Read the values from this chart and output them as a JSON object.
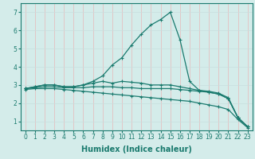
{
  "xlabel": "Humidex (Indice chaleur)",
  "bg_color": "#d4ecea",
  "line_color": "#1a7a6e",
  "grid_color_h": "#c8dede",
  "grid_color_v": "#e8b8b8",
  "xlim": [
    -0.5,
    23.5
  ],
  "ylim": [
    0.5,
    7.5
  ],
  "xticks": [
    0,
    1,
    2,
    3,
    4,
    5,
    6,
    7,
    8,
    9,
    10,
    11,
    12,
    13,
    14,
    15,
    16,
    17,
    18,
    19,
    20,
    21,
    22,
    23
  ],
  "yticks": [
    1,
    2,
    3,
    4,
    5,
    6,
    7
  ],
  "lines": [
    {
      "x": [
        0,
        1,
        2,
        3,
        4,
        5,
        6,
        7,
        8,
        9,
        10,
        11,
        12,
        13,
        14,
        15,
        16,
        17,
        18,
        19,
        20,
        21,
        22,
        23
      ],
      "y": [
        2.8,
        2.9,
        3.0,
        3.0,
        2.9,
        2.9,
        3.0,
        3.2,
        3.5,
        4.1,
        4.5,
        5.2,
        5.8,
        6.3,
        6.6,
        7.0,
        5.5,
        3.2,
        2.7,
        2.65,
        2.55,
        2.3,
        1.2,
        0.7
      ]
    },
    {
      "x": [
        0,
        1,
        2,
        3,
        4,
        5,
        6,
        7,
        8,
        9,
        10,
        11,
        12,
        13,
        14,
        15,
        16,
        17,
        18,
        19,
        20,
        21,
        22,
        23
      ],
      "y": [
        2.8,
        2.9,
        3.0,
        3.0,
        2.9,
        2.9,
        3.0,
        3.1,
        3.2,
        3.1,
        3.2,
        3.15,
        3.1,
        3.0,
        3.0,
        3.0,
        2.9,
        2.8,
        2.7,
        2.6,
        2.5,
        2.25,
        1.2,
        0.7
      ]
    },
    {
      "x": [
        0,
        1,
        2,
        3,
        4,
        5,
        6,
        7,
        8,
        9,
        10,
        11,
        12,
        13,
        14,
        15,
        16,
        17,
        18,
        19,
        20,
        21,
        22,
        23
      ],
      "y": [
        2.8,
        2.85,
        2.9,
        2.9,
        2.85,
        2.85,
        2.85,
        2.9,
        2.9,
        2.9,
        2.85,
        2.85,
        2.8,
        2.8,
        2.8,
        2.8,
        2.75,
        2.7,
        2.65,
        2.6,
        2.5,
        2.25,
        1.2,
        0.7
      ]
    },
    {
      "x": [
        0,
        1,
        2,
        3,
        4,
        5,
        6,
        7,
        8,
        9,
        10,
        11,
        12,
        13,
        14,
        15,
        16,
        17,
        18,
        19,
        20,
        21,
        22,
        23
      ],
      "y": [
        2.75,
        2.8,
        2.8,
        2.8,
        2.75,
        2.7,
        2.65,
        2.6,
        2.55,
        2.5,
        2.45,
        2.4,
        2.35,
        2.3,
        2.25,
        2.2,
        2.15,
        2.1,
        2.0,
        1.9,
        1.8,
        1.65,
        1.1,
        0.65
      ]
    }
  ],
  "marker": "+",
  "markersize": 3,
  "linewidth": 0.9,
  "xlabel_fontsize": 7,
  "tick_fontsize": 5.5
}
